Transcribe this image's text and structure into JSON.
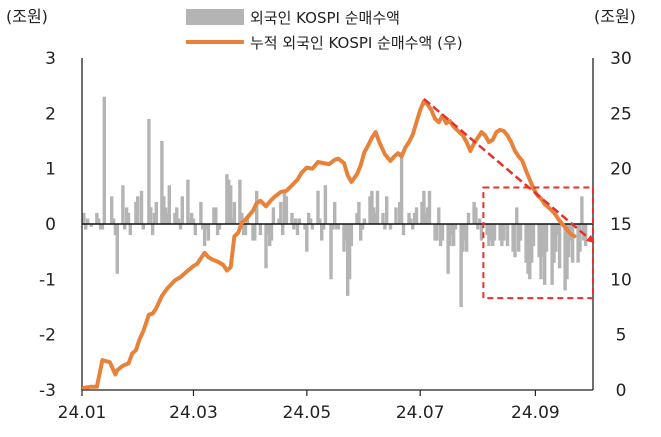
{
  "chart_data": {
    "type": "bar+line",
    "left_axis_unit": "(조원)",
    "right_axis_unit": "(조원)",
    "ylim_left": [
      -3,
      3
    ],
    "yticks_left": [
      "3",
      "2",
      "1",
      "0",
      "-1",
      "-2",
      "-3"
    ],
    "ylim_right": [
      0,
      30
    ],
    "yticks_right": [
      "30",
      "25",
      "20",
      "15",
      "10",
      "5",
      "0"
    ],
    "xticks": [
      "24.01",
      "24.03",
      "24.05",
      "24.07",
      "24.09"
    ],
    "x_range_days": [
      0,
      275
    ],
    "xtick_days": [
      0,
      60,
      121,
      182,
      244
    ],
    "series": [
      {
        "name": "외국인 KOSPI 순매수액",
        "type": "bar",
        "axis": "left",
        "color": "#b4b4b4",
        "points": [
          [
            1,
            0.2
          ],
          [
            2,
            -0.1
          ],
          [
            3,
            0.1
          ],
          [
            4,
            0.0
          ],
          [
            5,
            -0.05
          ],
          [
            8,
            0.2
          ],
          [
            9,
            0.1
          ],
          [
            10,
            -0.1
          ],
          [
            11,
            -0.1
          ],
          [
            12,
            2.3
          ],
          [
            15,
            0.0
          ],
          [
            16,
            0.5
          ],
          [
            17,
            0.1
          ],
          [
            18,
            -0.2
          ],
          [
            19,
            -0.9
          ],
          [
            22,
            0.7
          ],
          [
            23,
            -0.1
          ],
          [
            24,
            0.3
          ],
          [
            25,
            0.2
          ],
          [
            26,
            -0.2
          ],
          [
            29,
            0.4
          ],
          [
            30,
            0.5
          ],
          [
            31,
            0.0
          ],
          [
            32,
            0.6
          ],
          [
            33,
            -0.1
          ],
          [
            36,
            1.9
          ],
          [
            37,
            0.3
          ],
          [
            38,
            -0.2
          ],
          [
            39,
            0.2
          ],
          [
            40,
            0.4
          ],
          [
            43,
            1.5
          ],
          [
            44,
            0.5
          ],
          [
            45,
            0.3
          ],
          [
            46,
            0.2
          ],
          [
            47,
            0.7
          ],
          [
            50,
            0.2
          ],
          [
            51,
            0.3
          ],
          [
            52,
            0.1
          ],
          [
            53,
            -0.1
          ],
          [
            54,
            0.5
          ],
          [
            57,
            0.8
          ],
          [
            58,
            0.1
          ],
          [
            59,
            0.2
          ],
          [
            60,
            0.1
          ],
          [
            61,
            -0.2
          ],
          [
            64,
            0.4
          ],
          [
            65,
            -0.1
          ],
          [
            66,
            -0.4
          ],
          [
            67,
            -0.1
          ],
          [
            68,
            -0.3
          ],
          [
            71,
            0.3
          ],
          [
            72,
            0.3
          ],
          [
            73,
            -0.2
          ],
          [
            74,
            -0.1
          ],
          [
            75,
            0.0
          ],
          [
            78,
            0.9
          ],
          [
            79,
            0.8
          ],
          [
            80,
            0.7
          ],
          [
            81,
            0.1
          ],
          [
            82,
            0.4
          ],
          [
            85,
            0.8
          ],
          [
            86,
            0.2
          ],
          [
            87,
            -0.2
          ],
          [
            88,
            -0.2
          ],
          [
            89,
            0.1
          ],
          [
            92,
            -0.3
          ],
          [
            93,
            -0.3
          ],
          [
            94,
            0.6
          ],
          [
            95,
            0.0
          ],
          [
            96,
            -0.2
          ],
          [
            99,
            -0.8
          ],
          [
            100,
            -0.2
          ],
          [
            101,
            -0.4
          ],
          [
            102,
            -0.3
          ],
          [
            103,
            0.3
          ],
          [
            106,
            0.1
          ],
          [
            107,
            0.4
          ],
          [
            108,
            -0.2
          ],
          [
            109,
            0.6
          ],
          [
            110,
            0.5
          ],
          [
            113,
            0.2
          ],
          [
            114,
            -0.1
          ],
          [
            115,
            0.1
          ],
          [
            116,
            -0.2
          ],
          [
            117,
            0.1
          ],
          [
            120,
            -0.1
          ],
          [
            121,
            -0.5
          ],
          [
            122,
            0.2
          ],
          [
            123,
            0.1
          ],
          [
            124,
            -0.1
          ],
          [
            127,
            0.6
          ],
          [
            128,
            0.1
          ],
          [
            129,
            -0.3
          ],
          [
            130,
            -0.1
          ],
          [
            131,
            0.7
          ],
          [
            134,
            -1.0
          ],
          [
            135,
            -0.1
          ],
          [
            136,
            0.4
          ],
          [
            137,
            -0.1
          ],
          [
            138,
            -0.1
          ],
          [
            141,
            -0.5
          ],
          [
            142,
            -0.3
          ],
          [
            143,
            -1.3
          ],
          [
            144,
            -1.0
          ],
          [
            145,
            -0.4
          ],
          [
            148,
            0.2
          ],
          [
            149,
            0.4
          ],
          [
            150,
            -0.3
          ],
          [
            151,
            -0.1
          ],
          [
            152,
            0.1
          ],
          [
            155,
            0.5
          ],
          [
            156,
            0.6
          ],
          [
            157,
            0.3
          ],
          [
            158,
            0.2
          ],
          [
            159,
            0.6
          ],
          [
            162,
            0.2
          ],
          [
            163,
            -0.1
          ],
          [
            164,
            0.5
          ],
          [
            165,
            0.0
          ],
          [
            166,
            -0.1
          ],
          [
            169,
            0.3
          ],
          [
            170,
            0.0
          ],
          [
            171,
            0.4
          ],
          [
            172,
            1.3
          ],
          [
            173,
            -0.2
          ],
          [
            176,
            0.2
          ],
          [
            177,
            0.1
          ],
          [
            178,
            -0.1
          ],
          [
            179,
            0.2
          ],
          [
            180,
            0.3
          ],
          [
            183,
            0.4
          ],
          [
            184,
            0.6
          ],
          [
            185,
            0.2
          ],
          [
            186,
            0.3
          ],
          [
            187,
            0.6
          ],
          [
            190,
            -0.3
          ],
          [
            191,
            -0.3
          ],
          [
            192,
            0.3
          ],
          [
            193,
            -0.4
          ],
          [
            194,
            -0.3
          ],
          [
            197,
            -0.9
          ],
          [
            198,
            -0.4
          ],
          [
            199,
            -0.2
          ],
          [
            200,
            -0.4
          ],
          [
            201,
            -0.1
          ],
          [
            204,
            -1.5
          ],
          [
            205,
            -0.5
          ],
          [
            206,
            -0.3
          ],
          [
            207,
            -0.5
          ],
          [
            208,
            0.2
          ],
          [
            211,
            0.4
          ],
          [
            212,
            0.3
          ],
          [
            213,
            -0.1
          ],
          [
            214,
            0.1
          ],
          [
            215,
            -0.3
          ],
          [
            218,
            -0.2
          ],
          [
            219,
            -0.4
          ],
          [
            220,
            -0.3
          ],
          [
            221,
            -0.4
          ],
          [
            222,
            -0.3
          ],
          [
            225,
            -0.3
          ],
          [
            226,
            -0.4
          ],
          [
            227,
            -0.3
          ],
          [
            228,
            0.0
          ],
          [
            229,
            -0.4
          ],
          [
            232,
            -0.5
          ],
          [
            233,
            -0.6
          ],
          [
            234,
            0.3
          ],
          [
            235,
            -0.5
          ],
          [
            236,
            -0.3
          ],
          [
            239,
            -0.7
          ],
          [
            240,
            -0.9
          ],
          [
            241,
            -1.0
          ],
          [
            242,
            -0.7
          ],
          [
            243,
            -0.4
          ],
          [
            246,
            -0.6
          ],
          [
            247,
            -1.0
          ],
          [
            248,
            -0.6
          ],
          [
            249,
            -1.1
          ],
          [
            250,
            -0.5
          ],
          [
            253,
            -1.1
          ],
          [
            254,
            -0.7
          ],
          [
            255,
            -0.5
          ],
          [
            256,
            -0.2
          ],
          [
            257,
            -0.8
          ],
          [
            260,
            -1.2
          ],
          [
            261,
            -1.0
          ],
          [
            262,
            -0.6
          ],
          [
            263,
            -0.3
          ],
          [
            264,
            -0.7
          ],
          [
            267,
            -0.7
          ],
          [
            268,
            -0.5
          ],
          [
            269,
            0.5
          ],
          [
            270,
            -0.3
          ],
          [
            271,
            -0.4
          ]
        ]
      },
      {
        "name": "누적 외국인 KOSPI 순매수액 (우)",
        "type": "line",
        "axis": "right",
        "color": "#e8823a",
        "points": [
          [
            1,
            0.2
          ],
          [
            5,
            0.3
          ],
          [
            8,
            0.3
          ],
          [
            11,
            2.7
          ],
          [
            15,
            2.5
          ],
          [
            18,
            1.4
          ],
          [
            19,
            1.8
          ],
          [
            22,
            2.2
          ],
          [
            25,
            2.4
          ],
          [
            27,
            3.3
          ],
          [
            29,
            3.6
          ],
          [
            31,
            4.6
          ],
          [
            33,
            5.3
          ],
          [
            36,
            6.8
          ],
          [
            38,
            6.9
          ],
          [
            40,
            7.4
          ],
          [
            43,
            8.5
          ],
          [
            46,
            9.2
          ],
          [
            50,
            9.9
          ],
          [
            53,
            10.2
          ],
          [
            57,
            10.8
          ],
          [
            60,
            11.2
          ],
          [
            62,
            11.4
          ],
          [
            64,
            11.9
          ],
          [
            66,
            12.4
          ],
          [
            68,
            12.0
          ],
          [
            70,
            11.8
          ],
          [
            73,
            11.6
          ],
          [
            76,
            11.3
          ],
          [
            78,
            10.8
          ],
          [
            80,
            11.1
          ],
          [
            82,
            13.9
          ],
          [
            84,
            14.2
          ],
          [
            86,
            15.1
          ],
          [
            88,
            15.4
          ],
          [
            92,
            16.2
          ],
          [
            94,
            16.9
          ],
          [
            96,
            17.1
          ],
          [
            99,
            16.6
          ],
          [
            102,
            17.2
          ],
          [
            104,
            17.5
          ],
          [
            107,
            17.9
          ],
          [
            110,
            18.0
          ],
          [
            113,
            18.5
          ],
          [
            116,
            19.0
          ],
          [
            118,
            19.6
          ],
          [
            121,
            20.1
          ],
          [
            124,
            20.0
          ],
          [
            127,
            20.6
          ],
          [
            130,
            20.5
          ],
          [
            133,
            20.4
          ],
          [
            136,
            20.8
          ],
          [
            138,
            20.9
          ],
          [
            141,
            20.5
          ],
          [
            143,
            19.4
          ],
          [
            145,
            18.8
          ],
          [
            148,
            19.5
          ],
          [
            150,
            20.3
          ],
          [
            152,
            21.5
          ],
          [
            154,
            22.1
          ],
          [
            156,
            22.8
          ],
          [
            158,
            23.3
          ],
          [
            160,
            22.4
          ],
          [
            163,
            21.3
          ],
          [
            166,
            20.7
          ],
          [
            168,
            21.1
          ],
          [
            170,
            21.4
          ],
          [
            172,
            21.1
          ],
          [
            174,
            21.9
          ],
          [
            176,
            22.4
          ],
          [
            178,
            23.1
          ],
          [
            180,
            24.2
          ],
          [
            182,
            25.3
          ],
          [
            184,
            26.1
          ],
          [
            186,
            25.8
          ],
          [
            188,
            25.3
          ],
          [
            190,
            24.5
          ],
          [
            192,
            24.2
          ],
          [
            194,
            24.8
          ],
          [
            196,
            24.1
          ],
          [
            198,
            24.3
          ],
          [
            200,
            23.8
          ],
          [
            203,
            23.3
          ],
          [
            205,
            23.0
          ],
          [
            207,
            22.4
          ],
          [
            209,
            21.6
          ],
          [
            211,
            22.3
          ],
          [
            213,
            22.8
          ],
          [
            215,
            23.3
          ],
          [
            217,
            23.0
          ],
          [
            219,
            22.4
          ],
          [
            221,
            22.6
          ],
          [
            223,
            23.3
          ],
          [
            225,
            23.5
          ],
          [
            227,
            23.4
          ],
          [
            229,
            23.0
          ],
          [
            231,
            22.4
          ],
          [
            233,
            21.6
          ],
          [
            235,
            21.1
          ],
          [
            237,
            20.7
          ],
          [
            239,
            19.8
          ],
          [
            241,
            19.0
          ],
          [
            243,
            18.2
          ],
          [
            245,
            17.6
          ],
          [
            247,
            17.3
          ],
          [
            249,
            16.8
          ],
          [
            251,
            16.5
          ],
          [
            253,
            16.2
          ],
          [
            255,
            15.8
          ],
          [
            257,
            15.3
          ],
          [
            259,
            14.9
          ],
          [
            261,
            14.5
          ],
          [
            263,
            14.1
          ],
          [
            265,
            13.9
          ]
        ]
      }
    ]
  },
  "annotation": {
    "trend_arrow": {
      "color": "#e8302a",
      "from": [
        184,
        26.3
      ],
      "to": [
        275,
        13.4
      ]
    },
    "highlight_box": {
      "color": "#e8302a",
      "x_range": [
        216,
        275
      ],
      "y_right_range": [
        8.3,
        18.3
      ]
    }
  },
  "legend": {
    "bar_label": "외국인 KOSPI 순매수액",
    "line_label": "누적 외국인 KOSPI 순매수액 (우)"
  }
}
